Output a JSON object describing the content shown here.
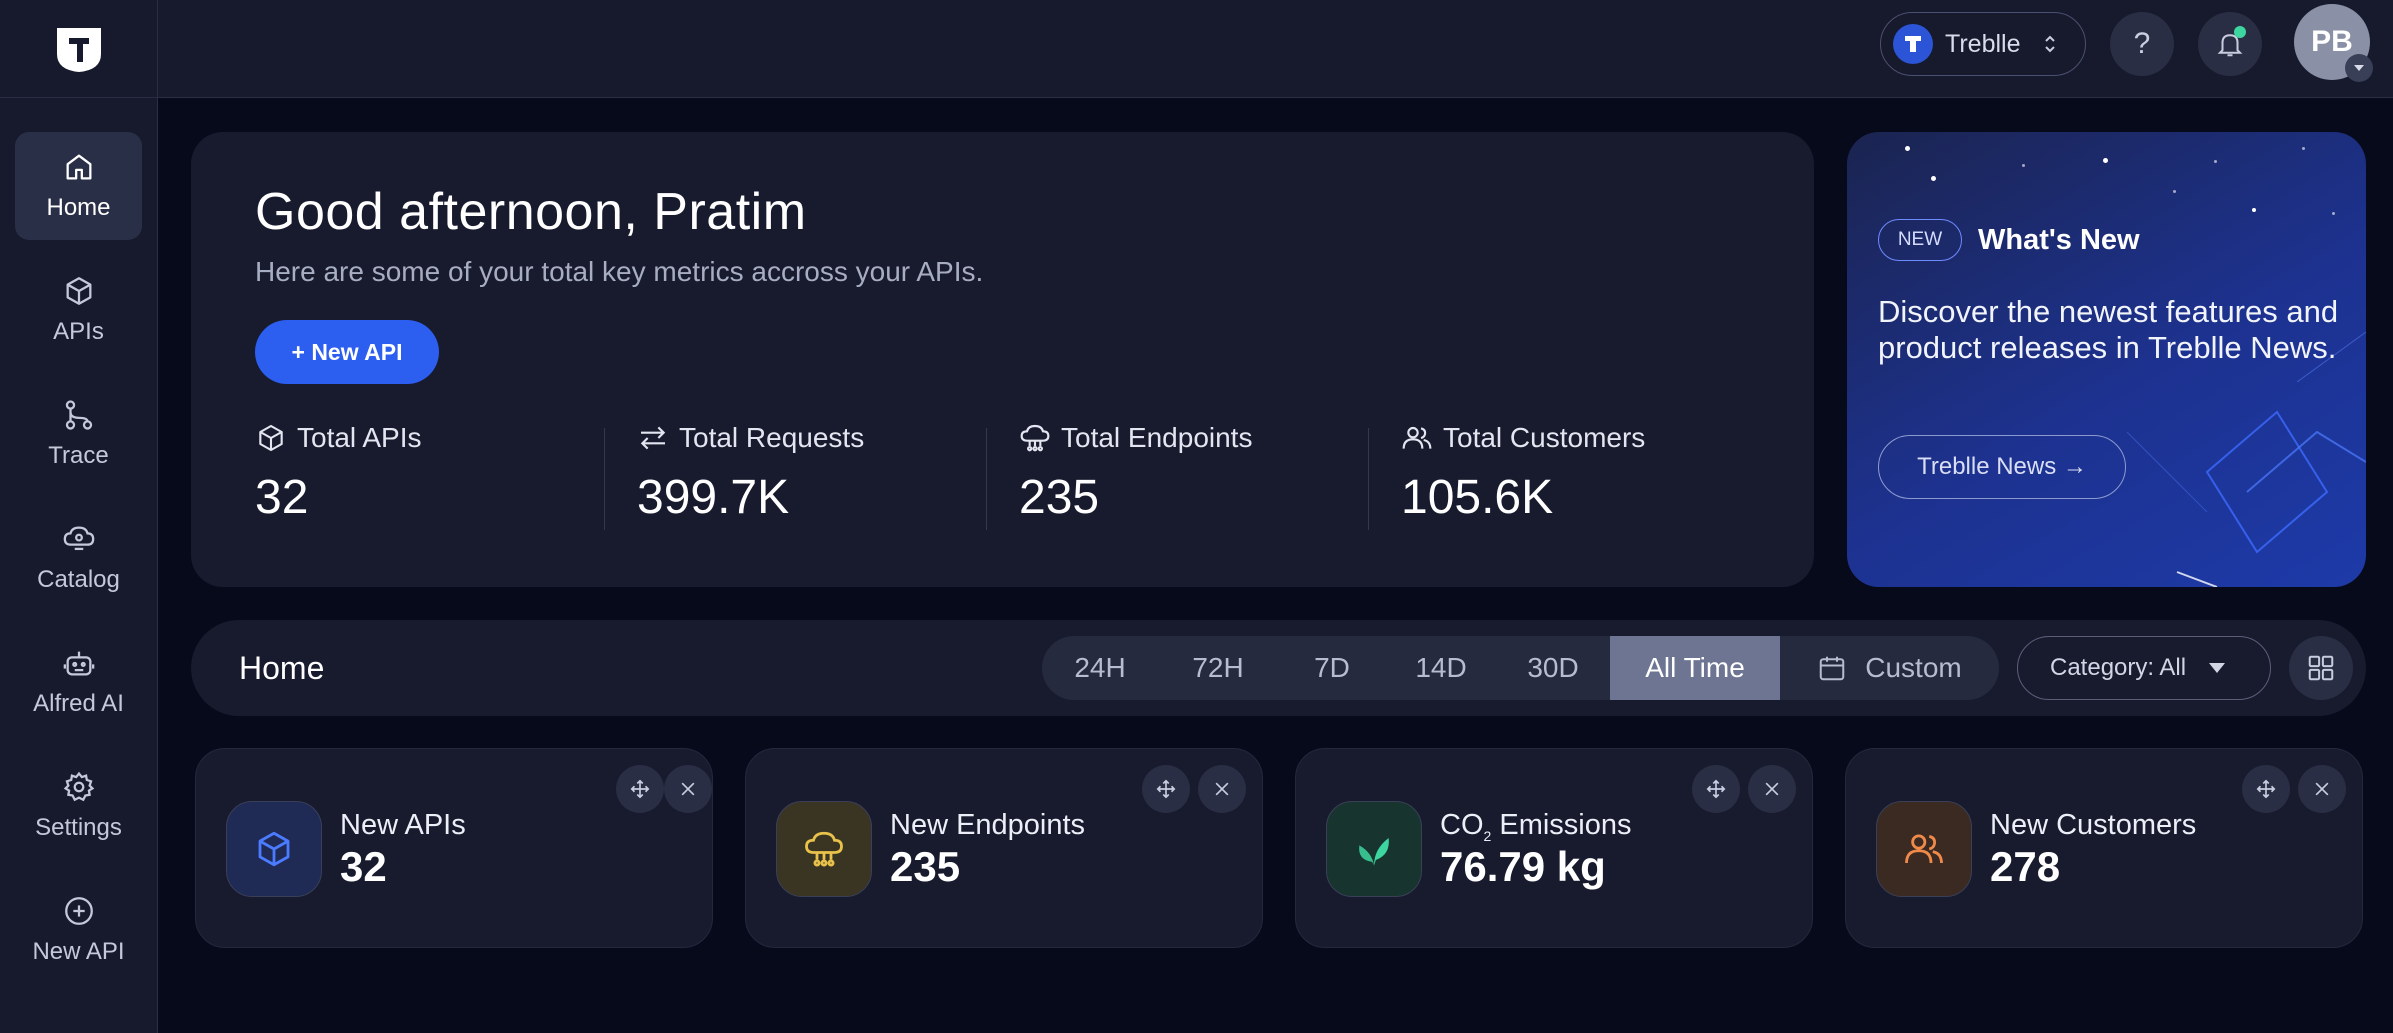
{
  "sidebar": {
    "items": [
      {
        "label": "Home",
        "icon": "home-icon"
      },
      {
        "label": "APIs",
        "icon": "cube-icon"
      },
      {
        "label": "Trace",
        "icon": "trace-icon"
      },
      {
        "label": "Catalog",
        "icon": "catalog-icon"
      },
      {
        "label": "Alfred AI",
        "icon": "robot-icon"
      },
      {
        "label": "Settings",
        "icon": "gear-icon"
      },
      {
        "label": "New API",
        "icon": "plus-circle-icon"
      }
    ]
  },
  "topbar": {
    "workspace": "Treblle",
    "help": "?",
    "avatar_initials": "PB"
  },
  "hero": {
    "greeting": "Good afternoon, Pratim",
    "subtitle": "Here are some of your total key metrics accross your APIs.",
    "new_api_button": "+ New API",
    "metrics": [
      {
        "label": "Total APIs",
        "value": "32",
        "icon": "cube-icon"
      },
      {
        "label": "Total Requests",
        "value": "399.7K",
        "icon": "arrows-icon"
      },
      {
        "label": "Total Endpoints",
        "value": "235",
        "icon": "cloud-icon"
      },
      {
        "label": "Total Customers",
        "value": "105.6K",
        "icon": "users-icon"
      }
    ]
  },
  "whats_new": {
    "badge": "NEW",
    "title": "What's New",
    "text": "Discover the newest features and product releases in Treblle News.",
    "button": "Treblle News →"
  },
  "filterbar": {
    "title": "Home",
    "ranges": [
      "24H",
      "72H",
      "7D",
      "14D",
      "30D",
      "All Time"
    ],
    "active_range": "All Time",
    "custom": "Custom",
    "category": "Category: All"
  },
  "cards": [
    {
      "label": "New APIs",
      "value": "32",
      "icon": "cube-icon",
      "color": "#3d6bff"
    },
    {
      "label": "New Endpoints",
      "value": "235",
      "icon": "cloud-icon",
      "color": "#e8c24a"
    },
    {
      "label_prefix": "CO",
      "label_sub": "2",
      "label_suffix": " Emissions",
      "value": "76.79 kg",
      "icon": "leaf-icon",
      "color": "#3ed6a0"
    },
    {
      "label": "New Customers",
      "value": "278",
      "icon": "users-icon",
      "color": "#f08a4b"
    }
  ]
}
